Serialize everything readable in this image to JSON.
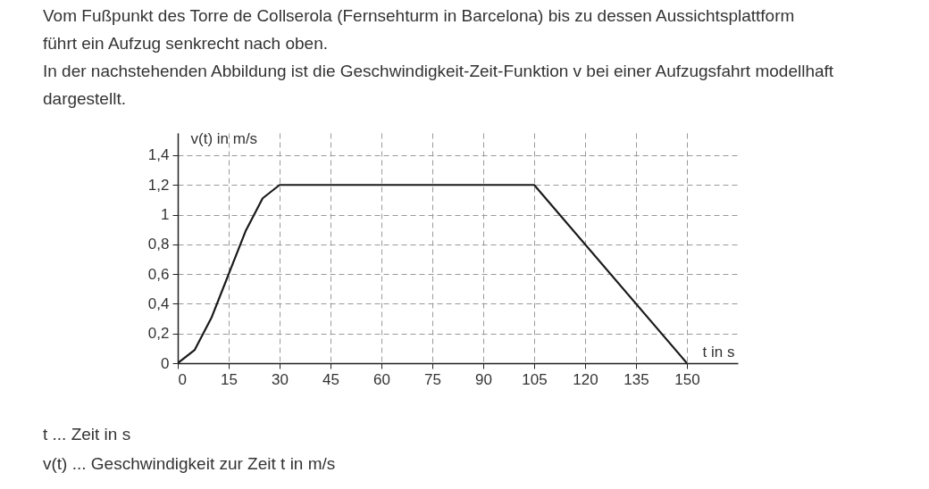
{
  "chart_data": {
    "type": "line",
    "title": "Vom Fußpunkt des Torre de Collserola (Fernsehturm in Barcelona) bis zu dessen Aussichtsplattform führt ein Aufzug senkrecht nach oben.",
    "subtitle": "In der nachstehenden Abbildung ist die Geschwindigkeit-Zeit-Funktion v bei einer Aufzugsfahrt modellhaft dargestellt.",
    "xlabel": "t in s",
    "ylabel": "v(t) in m/s",
    "x": [
      0,
      5,
      10,
      15,
      20,
      25,
      30,
      105,
      150
    ],
    "series": [
      {
        "color": "#1a1a1a",
        "values": [
          0,
          0.09,
          0.31,
          0.6,
          0.89,
          1.11,
          1.2,
          1.2,
          0
        ]
      }
    ],
    "xlim": [
      0,
      165
    ],
    "xticks": [
      0,
      15,
      30,
      45,
      60,
      75,
      90,
      105,
      120,
      135,
      150
    ],
    "ylim": [
      0,
      1.55
    ],
    "yticks": [
      {
        "value": 0,
        "label": "0"
      },
      {
        "value": 0.2,
        "label": "0,2"
      },
      {
        "value": 0.4,
        "label": "0,4"
      },
      {
        "value": 0.6,
        "label": "0,6"
      },
      {
        "value": 0.8,
        "label": "0,8"
      },
      1,
      {
        "value": 1.2,
        "label": "1,2"
      },
      {
        "value": 1.4,
        "label": "1,4"
      }
    ],
    "grid": true,
    "marker": "none",
    "line_style": "solid",
    "annotations": [
      "t ... Zeit in s",
      "v(t) ... Geschwindigkeit zur Zeit t in m/s"
    ]
  }
}
